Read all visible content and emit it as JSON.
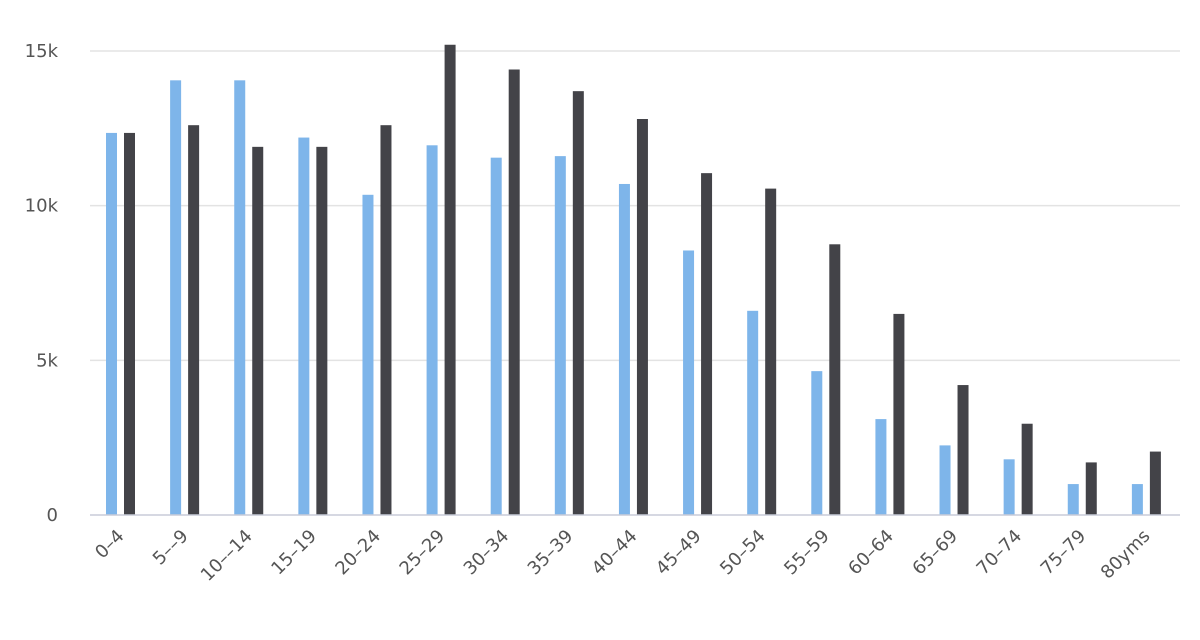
{
  "chart_data": {
    "type": "bar",
    "title": "",
    "xlabel": "",
    "ylabel": "",
    "ylim": [
      0,
      16000
    ],
    "yticks": [
      {
        "value": 0,
        "label": "0"
      },
      {
        "value": 5000,
        "label": "5k"
      },
      {
        "value": 10000,
        "label": "10k"
      },
      {
        "value": 15000,
        "label": "15k"
      }
    ],
    "grid": true,
    "legend": "none",
    "categories": [
      "0–4",
      "5––9",
      "10––14",
      "15–19",
      "20–24",
      "25–29",
      "30–34",
      "35–39",
      "40–44",
      "45–49",
      "50–54",
      "55–59",
      "60–64",
      "65–69",
      "70–74",
      "75–79",
      "80yms"
    ],
    "series": [
      {
        "color": "#7eb5ea",
        "values": [
          12350,
          14050,
          14050,
          12200,
          10350,
          11950,
          11550,
          11600,
          10700,
          8550,
          6600,
          4650,
          3100,
          2250,
          1800,
          1000,
          1000
        ]
      },
      {
        "color": "#434348",
        "values": [
          12350,
          12600,
          11900,
          11900,
          12600,
          15200,
          14400,
          13700,
          12800,
          11050,
          10550,
          8750,
          6500,
          4200,
          2950,
          1700,
          2050
        ]
      }
    ]
  }
}
